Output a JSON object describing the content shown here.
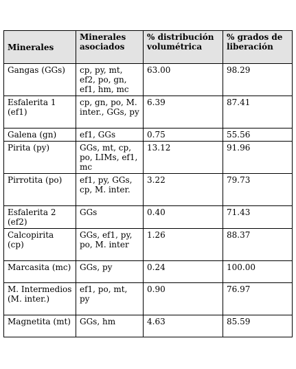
{
  "table": {
    "headers": [
      "Minerales",
      "Minerales asociados",
      "% distribución volumétrica",
      "% grados de liberación"
    ],
    "rows": [
      {
        "mineral": "Gangas (GGs)",
        "asociados": "cp, py, mt, ef2, po, gn, ef1, hm, mc",
        "distribucion": "63.00",
        "liberacion": "98.29"
      },
      {
        "mineral": "Esfalerita 1 (ef1)",
        "asociados": "cp, gn, po, M. inter., GGs, py",
        "distribucion": "6.39",
        "liberacion": "87.41"
      },
      {
        "mineral": "Galena (gn)",
        "asociados": "ef1, GGs",
        "distribucion": "0.75",
        "liberacion": "55.56"
      },
      {
        "mineral": "Pirita (py)",
        "asociados": "GGs, mt, cp, po, LIMs, ef1, mc",
        "distribucion": "13.12",
        "liberacion": "91.96"
      },
      {
        "mineral": "Pirrotita (po)",
        "asociados": "ef1, py, GGs, cp, M. inter.",
        "distribucion": "3.22",
        "liberacion": "79.73"
      },
      {
        "mineral": "Esfalerita 2 (ef2)",
        "asociados": "GGs",
        "distribucion": "0.40",
        "liberacion": "71.43"
      },
      {
        "mineral": "Calcopirita (cp)",
        "asociados": "GGs, ef1, py, po, M. inter",
        "distribucion": "1.26",
        "liberacion": "88.37"
      },
      {
        "mineral": "Marcasita (mc)",
        "asociados": "GGs, py",
        "distribucion": "0.24",
        "liberacion": "100.00"
      },
      {
        "mineral": "M. Intermedios (M. inter.)",
        "asociados": "ef1, po, mt, py",
        "distribucion": "0.90",
        "liberacion": "76.97"
      },
      {
        "mineral": "Magnetita (mt)",
        "asociados": "GGs, hm",
        "distribucion": "4.63",
        "liberacion": "85.59"
      }
    ]
  }
}
